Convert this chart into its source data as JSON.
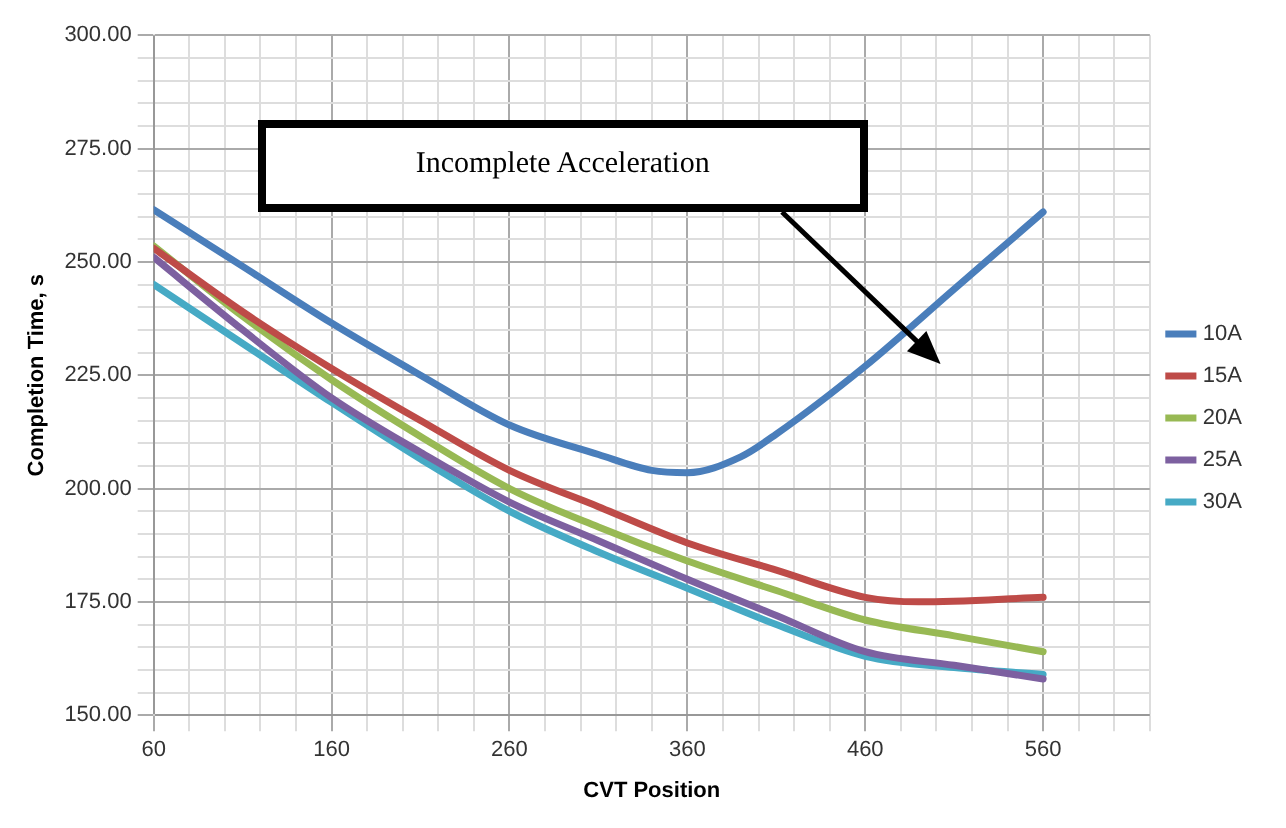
{
  "chart_data": {
    "type": "line",
    "xlabel": "CVT Position",
    "ylabel": "Completion Time, s",
    "xlim": [
      60,
      620
    ],
    "xticks": [
      60,
      {
        "value": 80,
        "label": null
      },
      {
        "value": 100,
        "label": null
      },
      {
        "value": 120,
        "label": null
      },
      {
        "value": 140,
        "label": null
      },
      160,
      {
        "value": 180,
        "label": null
      },
      {
        "value": 200,
        "label": null
      },
      {
        "value": 220,
        "label": null
      },
      {
        "value": 240,
        "label": null
      },
      260,
      {
        "value": 280,
        "label": null
      },
      {
        "value": 300,
        "label": null
      },
      {
        "value": 320,
        "label": null
      },
      {
        "value": 340,
        "label": null
      },
      360,
      {
        "value": 380,
        "label": null
      },
      {
        "value": 400,
        "label": null
      },
      {
        "value": 420,
        "label": null
      },
      {
        "value": 440,
        "label": null
      },
      460,
      {
        "value": 480,
        "label": null
      },
      {
        "value": 500,
        "label": null
      },
      {
        "value": 520,
        "label": null
      },
      {
        "value": 540,
        "label": null
      },
      560,
      {
        "value": 580,
        "label": null
      },
      {
        "value": 600,
        "label": null
      },
      {
        "value": 620,
        "label": null
      }
    ],
    "ylim": [
      150,
      300
    ],
    "yticks": [
      {
        "value": 150,
        "label": "150.00"
      },
      {
        "value": 155,
        "label": null
      },
      {
        "value": 160,
        "label": null
      },
      {
        "value": 165,
        "label": null
      },
      {
        "value": 170,
        "label": null
      },
      {
        "value": 175,
        "label": "175.00"
      },
      {
        "value": 180,
        "label": null
      },
      {
        "value": 185,
        "label": null
      },
      {
        "value": 190,
        "label": null
      },
      {
        "value": 195,
        "label": null
      },
      {
        "value": 200,
        "label": "200.00"
      },
      {
        "value": 205,
        "label": null
      },
      {
        "value": 210,
        "label": null
      },
      {
        "value": 215,
        "label": null
      },
      {
        "value": 220,
        "label": null
      },
      {
        "value": 225,
        "label": "225.00"
      },
      {
        "value": 230,
        "label": null
      },
      {
        "value": 235,
        "label": null
      },
      {
        "value": 240,
        "label": null
      },
      {
        "value": 245,
        "label": null
      },
      {
        "value": 250,
        "label": "250.00"
      },
      {
        "value": 255,
        "label": null
      },
      {
        "value": 260,
        "label": null
      },
      {
        "value": 265,
        "label": null
      },
      {
        "value": 270,
        "label": null
      },
      {
        "value": 275,
        "label": "275.00"
      },
      {
        "value": 280,
        "label": null
      },
      {
        "value": 285,
        "label": null
      },
      {
        "value": 290,
        "label": null
      },
      {
        "value": 295,
        "label": null
      },
      {
        "value": 300,
        "label": "300.00"
      }
    ],
    "grid": true,
    "legend": "right",
    "marker": "none",
    "line_style": "solid",
    "annotations": [
      "Incomplete Acceleration"
    ],
    "series": [
      {
        "name": "10A",
        "color": "#4a7ebb",
        "x": [
          60,
          110,
          160,
          210,
          260,
          310,
          340,
          360,
          390,
          410,
          460,
          510,
          560
        ],
        "values": [
          261.5,
          249,
          236.5,
          225,
          214,
          207.5,
          204,
          203.5,
          207,
          212,
          227,
          244,
          261
        ]
      },
      {
        "name": "15A",
        "color": "#be4b48",
        "x": [
          60,
          110,
          160,
          210,
          260,
          310,
          360,
          410,
          460,
          490,
          560
        ],
        "values": [
          253,
          239,
          226.5,
          215,
          204,
          196,
          188,
          182,
          176,
          175,
          176
        ]
      },
      {
        "name": "20A",
        "color": "#98b954",
        "x": [
          60,
          110,
          160,
          210,
          260,
          310,
          360,
          410,
          460,
          510,
          560
        ],
        "values": [
          253.5,
          238,
          224,
          211.5,
          200,
          191.5,
          184,
          177.5,
          171,
          167.5,
          164
        ]
      },
      {
        "name": "25A",
        "color": "#7d60a0",
        "x": [
          60,
          110,
          160,
          210,
          260,
          310,
          360,
          410,
          460,
          510,
          560
        ],
        "values": [
          251,
          235,
          220,
          208,
          197,
          188.5,
          180,
          172,
          164,
          161,
          158
        ]
      },
      {
        "name": "30A",
        "color": "#46aac5",
        "x": [
          60,
          110,
          160,
          210,
          260,
          310,
          360,
          410,
          460,
          510,
          560
        ],
        "values": [
          245,
          232,
          219,
          206.5,
          195,
          186,
          178,
          170,
          163,
          160.5,
          159
        ]
      }
    ]
  }
}
